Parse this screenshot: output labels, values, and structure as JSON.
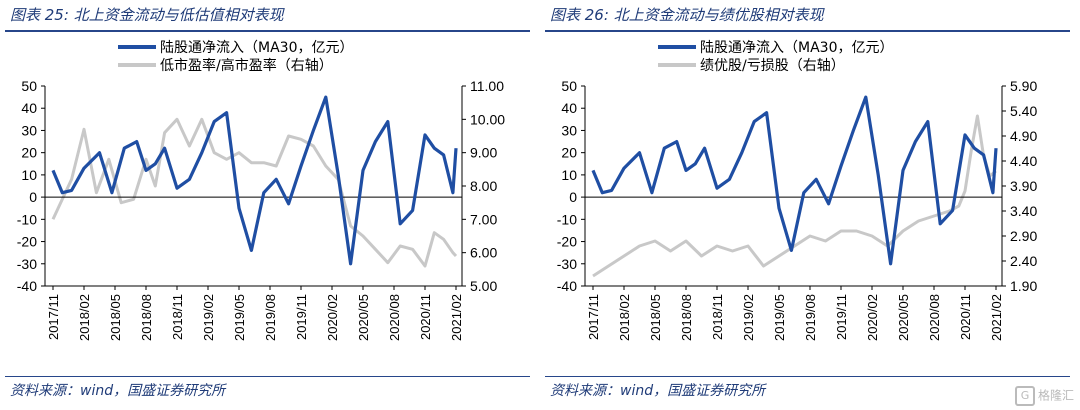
{
  "watermark": {
    "text": "格隆汇",
    "icon": "G"
  },
  "chart_data": [
    {
      "type": "line",
      "title": "图表 25:  北上资金流动与低估值相对表现",
      "source": "资料来源：wind，国盛证券研究所",
      "x_ticks": [
        "2017/11",
        "2018/02",
        "2018/05",
        "2018/08",
        "2018/11",
        "2019/02",
        "2019/05",
        "2019/08",
        "2019/11",
        "2020/02",
        "2020/05",
        "2020/08",
        "2020/11",
        "2021/02"
      ],
      "ylim": [
        -40,
        50
      ],
      "yticks": [
        -40,
        -30,
        -20,
        -10,
        0,
        10,
        20,
        30,
        40,
        50
      ],
      "y2lim": [
        5.0,
        11.0
      ],
      "y2ticks": [
        "5.00",
        "6.00",
        "7.00",
        "8.00",
        "9.00",
        "10.00",
        "11.00"
      ],
      "legend": [
        "陆股通净流入（MA30，亿元）",
        "低市盈率/高市盈率（右轴）"
      ],
      "colors": {
        "primary": "#1f4ea3",
        "secondary": "#c8c8c8"
      },
      "series": [
        {
          "name": "陆股通净流入（MA30，亿元）",
          "axis": "left",
          "x": [
            0,
            0.3,
            0.6,
            1,
            1.5,
            1.9,
            2.3,
            2.7,
            3.0,
            3.3,
            3.6,
            4.0,
            4.4,
            4.8,
            5.2,
            5.6,
            6.0,
            6.4,
            6.8,
            7.2,
            7.6,
            8.0,
            8.4,
            8.8,
            9.2,
            9.6,
            10,
            10.4,
            10.8,
            11.2,
            11.6,
            12.0,
            12.3,
            12.6,
            12.9,
            13.0
          ],
          "values": [
            12,
            2,
            3,
            13,
            20,
            2,
            22,
            25,
            12,
            15,
            22,
            4,
            8,
            20,
            34,
            38,
            -5,
            -24,
            2,
            8,
            -3,
            14,
            30,
            45,
            10,
            -30,
            12,
            25,
            34,
            -12,
            -6,
            28,
            22,
            19,
            2,
            22
          ]
        },
        {
          "name": "低市盈率/高市盈率（右轴）",
          "axis": "right",
          "x": [
            0,
            0.3,
            0.6,
            1,
            1.4,
            1.8,
            2.2,
            2.6,
            3.0,
            3.3,
            3.6,
            4.0,
            4.4,
            4.8,
            5.2,
            5.6,
            6.0,
            6.4,
            6.8,
            7.2,
            7.6,
            8.0,
            8.4,
            8.8,
            9.2,
            9.6,
            10,
            10.4,
            10.8,
            11.2,
            11.6,
            12.0,
            12.3,
            12.6,
            12.9,
            13.0
          ],
          "values": [
            7.0,
            7.6,
            8.2,
            9.7,
            7.8,
            8.8,
            7.5,
            7.6,
            8.8,
            8.0,
            9.6,
            10.0,
            9.2,
            10.0,
            9.0,
            8.8,
            9.0,
            8.7,
            8.7,
            8.6,
            9.5,
            9.4,
            9.2,
            8.6,
            8.2,
            6.8,
            6.5,
            6.1,
            5.7,
            6.2,
            6.1,
            5.6,
            6.6,
            6.4,
            6.0,
            5.9
          ]
        }
      ]
    },
    {
      "type": "line",
      "title": "图表 26:  北上资金流动与绩优股相对表现",
      "source": "资料来源：wind，国盛证券研究所",
      "x_ticks": [
        "2017/11",
        "2018/02",
        "2018/05",
        "2018/08",
        "2018/11",
        "2019/02",
        "2019/05",
        "2019/08",
        "2019/11",
        "2020/02",
        "2020/05",
        "2020/08",
        "2020/11",
        "2021/02"
      ],
      "ylim": [
        -40,
        50
      ],
      "yticks": [
        -40,
        -30,
        -20,
        -10,
        0,
        10,
        20,
        30,
        40,
        50
      ],
      "y2lim": [
        1.9,
        5.9
      ],
      "y2ticks": [
        "1.90",
        "2.40",
        "2.90",
        "3.40",
        "3.90",
        "4.40",
        "4.90",
        "5.40",
        "5.90"
      ],
      "legend": [
        "陆股通净流入（MA30，亿元）",
        "绩优股/亏损股（右轴）"
      ],
      "colors": {
        "primary": "#1f4ea3",
        "secondary": "#c8c8c8"
      },
      "series": [
        {
          "name": "陆股通净流入（MA30，亿元）",
          "axis": "left",
          "x": [
            0,
            0.3,
            0.6,
            1,
            1.5,
            1.9,
            2.3,
            2.7,
            3.0,
            3.3,
            3.6,
            4.0,
            4.4,
            4.8,
            5.2,
            5.6,
            6.0,
            6.4,
            6.8,
            7.2,
            7.6,
            8.0,
            8.4,
            8.8,
            9.2,
            9.6,
            10,
            10.4,
            10.8,
            11.2,
            11.6,
            12.0,
            12.3,
            12.6,
            12.9,
            13.0
          ],
          "values": [
            12,
            2,
            3,
            13,
            20,
            2,
            22,
            25,
            12,
            15,
            22,
            4,
            8,
            20,
            34,
            38,
            -5,
            -24,
            2,
            8,
            -3,
            14,
            30,
            45,
            10,
            -30,
            12,
            25,
            34,
            -12,
            -6,
            28,
            22,
            19,
            2,
            22
          ]
        },
        {
          "name": "绩优股/亏损股（右轴）",
          "axis": "right",
          "x": [
            0,
            0.5,
            1,
            1.5,
            2,
            2.5,
            3,
            3.5,
            4,
            4.5,
            5,
            5.5,
            6,
            6.5,
            7,
            7.5,
            8,
            8.5,
            9,
            9.5,
            10,
            10.5,
            11,
            11.5,
            11.8,
            12.0,
            12.2,
            12.4,
            12.6,
            12.8,
            13.0
          ],
          "values": [
            2.1,
            2.3,
            2.5,
            2.7,
            2.8,
            2.6,
            2.8,
            2.5,
            2.7,
            2.6,
            2.7,
            2.3,
            2.5,
            2.7,
            2.9,
            2.8,
            3.0,
            3.0,
            2.9,
            2.7,
            3.0,
            3.2,
            3.3,
            3.4,
            3.5,
            3.8,
            4.6,
            5.3,
            4.5,
            4.1,
            4.2
          ]
        }
      ]
    }
  ]
}
